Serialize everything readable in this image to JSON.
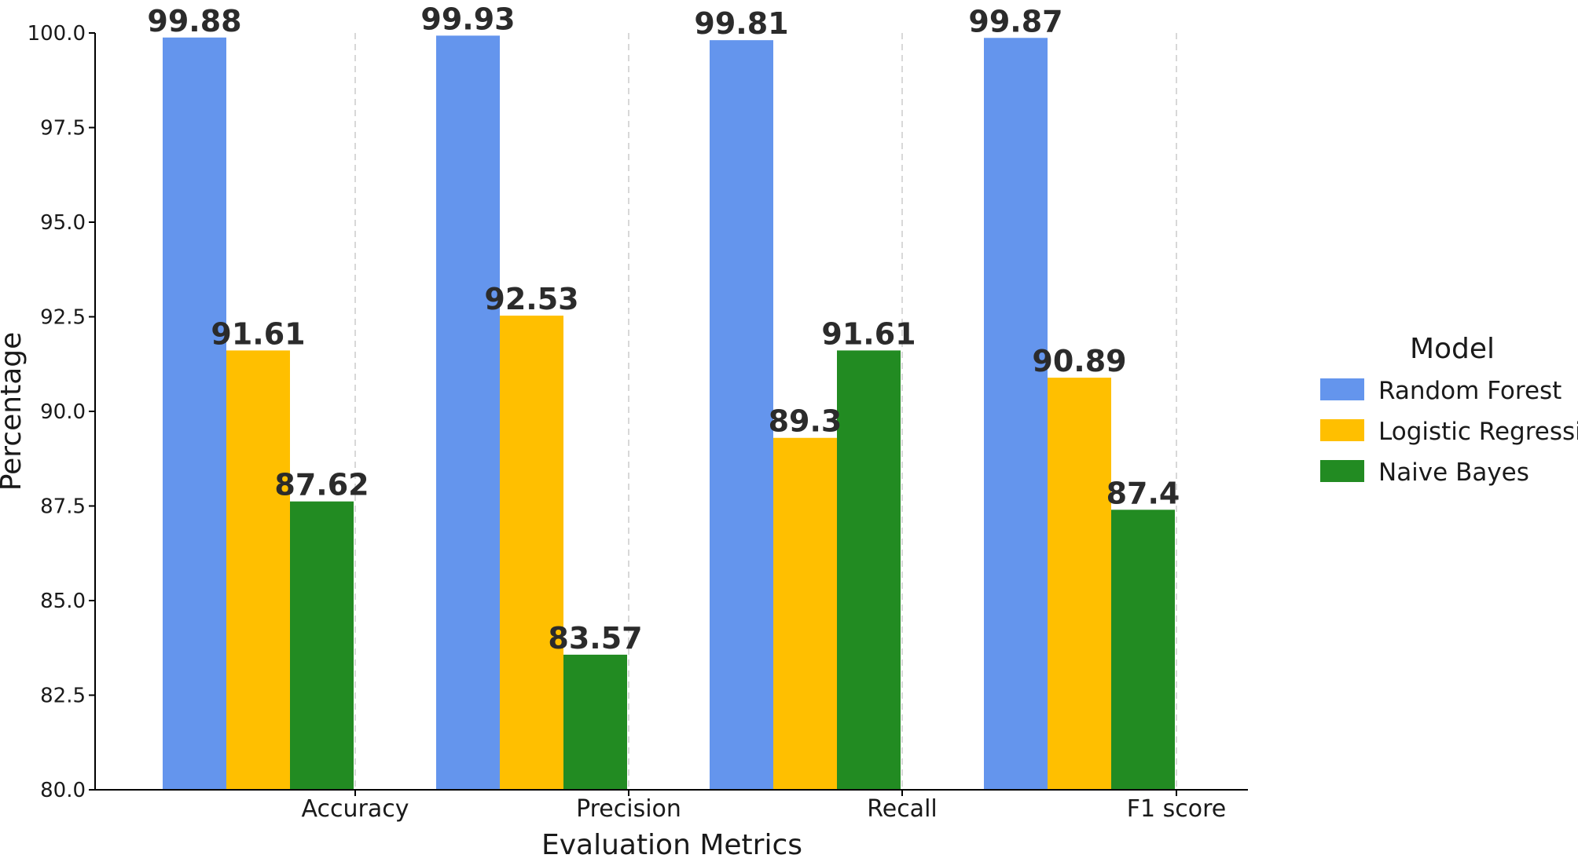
{
  "chart_data": {
    "type": "bar",
    "categories": [
      "Accuracy",
      "Precision",
      "Recall",
      "F1 score"
    ],
    "series": [
      {
        "name": "Random Forest",
        "color": "#6495ED",
        "values": [
          99.88,
          99.93,
          99.81,
          99.87
        ]
      },
      {
        "name": "Logistic Regression",
        "color": "#FFBF00",
        "values": [
          91.61,
          92.53,
          89.3,
          90.89
        ]
      },
      {
        "name": "Naive Bayes",
        "color": "#228B22",
        "values": [
          87.62,
          83.57,
          91.61,
          87.4
        ]
      }
    ],
    "value_labels": [
      [
        "99.88",
        "99.93",
        "99.81",
        "99.87"
      ],
      [
        "91.61",
        "92.53",
        "89.3",
        "90.89"
      ],
      [
        "87.62",
        "83.57",
        "91.61",
        "87.4"
      ]
    ],
    "xlabel": "Evaluation Metrics",
    "ylabel": "Percentage",
    "ylim": [
      80.0,
      100.0
    ],
    "yticks": [
      "80.0",
      "82.5",
      "85.0",
      "87.5",
      "90.0",
      "92.5",
      "95.0",
      "97.5",
      "100.0"
    ],
    "grid": "vertical dashed lines at category ticks",
    "legend": {
      "title": "Model",
      "placement": "right"
    }
  }
}
